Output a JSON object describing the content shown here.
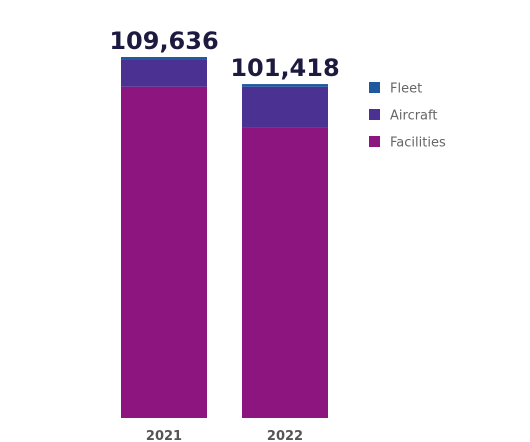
{
  "chart_data": {
    "type": "bar",
    "stacked": true,
    "categories": [
      "2021",
      "2022"
    ],
    "totals": [
      "109,636",
      "101,418"
    ],
    "series": [
      {
        "name": "Facilities",
        "values": [
          100600,
          88100
        ],
        "color": "#8c1580"
      },
      {
        "name": "Aircraft",
        "values": [
          8400,
          12500
        ],
        "color": "#4b3192"
      },
      {
        "name": "Fleet",
        "values": [
          636,
          818
        ],
        "color": "#1f5a9e"
      }
    ],
    "legend_order": [
      "Fleet",
      "Aircraft",
      "Facilities"
    ],
    "legend_position": "right",
    "grid": false,
    "ylim": [
      0,
      109636
    ]
  }
}
